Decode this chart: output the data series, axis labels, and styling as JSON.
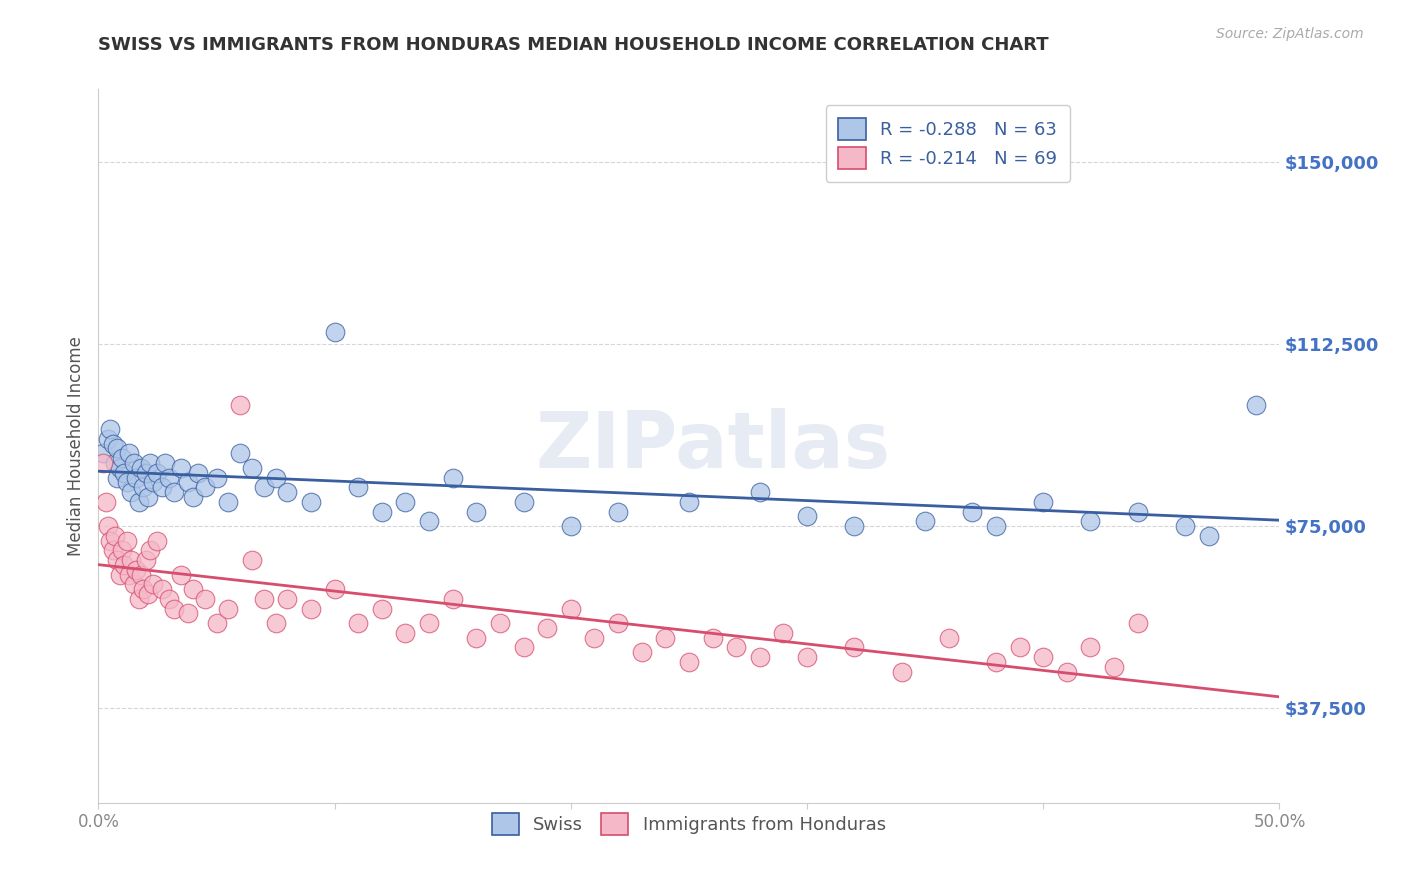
{
  "title": "SWISS VS IMMIGRANTS FROM HONDURAS MEDIAN HOUSEHOLD INCOME CORRELATION CHART",
  "source": "Source: ZipAtlas.com",
  "ylabel": "Median Household Income",
  "xlim": [
    0.0,
    0.5
  ],
  "ylim": [
    18000,
    165000
  ],
  "yticks": [
    37500,
    75000,
    112500,
    150000
  ],
  "ytick_labels": [
    "$37,500",
    "$75,000",
    "$112,500",
    "$150,000"
  ],
  "xticks": [
    0.0,
    0.1,
    0.2,
    0.3,
    0.4,
    0.5
  ],
  "xtick_labels": [
    "0.0%",
    "",
    "",
    "",
    "",
    "50.0%"
  ],
  "legend_labels": [
    "Swiss",
    "Immigrants from Honduras"
  ],
  "swiss_color": "#aec6e8",
  "swiss_line_color": "#3a5fa0",
  "honduras_color": "#f5b8c8",
  "honduras_line_color": "#d64d6e",
  "swiss_R": -0.288,
  "swiss_N": 63,
  "honduras_R": -0.214,
  "honduras_N": 69,
  "watermark": "ZIPatlas",
  "background_color": "#ffffff",
  "grid_color": "#cccccc",
  "title_color": "#333333",
  "axis_label_color": "#555555",
  "ytick_color": "#4472c4",
  "xtick_color": "#888888",
  "swiss_x": [
    0.002,
    0.004,
    0.005,
    0.006,
    0.007,
    0.008,
    0.008,
    0.009,
    0.01,
    0.011,
    0.012,
    0.013,
    0.014,
    0.015,
    0.016,
    0.017,
    0.018,
    0.019,
    0.02,
    0.021,
    0.022,
    0.023,
    0.025,
    0.027,
    0.028,
    0.03,
    0.032,
    0.035,
    0.038,
    0.04,
    0.042,
    0.045,
    0.05,
    0.055,
    0.06,
    0.065,
    0.07,
    0.075,
    0.08,
    0.09,
    0.1,
    0.11,
    0.12,
    0.13,
    0.14,
    0.15,
    0.16,
    0.18,
    0.2,
    0.22,
    0.25,
    0.28,
    0.3,
    0.32,
    0.35,
    0.37,
    0.38,
    0.4,
    0.42,
    0.44,
    0.46,
    0.47,
    0.49
  ],
  "swiss_y": [
    90000,
    93000,
    95000,
    92000,
    88000,
    85000,
    91000,
    87000,
    89000,
    86000,
    84000,
    90000,
    82000,
    88000,
    85000,
    80000,
    87000,
    83000,
    86000,
    81000,
    88000,
    84000,
    86000,
    83000,
    88000,
    85000,
    82000,
    87000,
    84000,
    81000,
    86000,
    83000,
    85000,
    80000,
    90000,
    87000,
    83000,
    85000,
    82000,
    80000,
    115000,
    83000,
    78000,
    80000,
    76000,
    85000,
    78000,
    80000,
    75000,
    78000,
    80000,
    82000,
    77000,
    75000,
    76000,
    78000,
    75000,
    80000,
    76000,
    78000,
    75000,
    73000,
    100000
  ],
  "honduras_x": [
    0.002,
    0.003,
    0.004,
    0.005,
    0.006,
    0.007,
    0.008,
    0.009,
    0.01,
    0.011,
    0.012,
    0.013,
    0.014,
    0.015,
    0.016,
    0.017,
    0.018,
    0.019,
    0.02,
    0.021,
    0.022,
    0.023,
    0.025,
    0.027,
    0.03,
    0.032,
    0.035,
    0.038,
    0.04,
    0.045,
    0.05,
    0.055,
    0.06,
    0.065,
    0.07,
    0.075,
    0.08,
    0.09,
    0.1,
    0.11,
    0.12,
    0.13,
    0.14,
    0.15,
    0.16,
    0.17,
    0.18,
    0.19,
    0.2,
    0.21,
    0.22,
    0.23,
    0.24,
    0.25,
    0.26,
    0.27,
    0.28,
    0.29,
    0.3,
    0.32,
    0.34,
    0.36,
    0.38,
    0.39,
    0.4,
    0.41,
    0.42,
    0.43,
    0.44
  ],
  "honduras_y": [
    88000,
    80000,
    75000,
    72000,
    70000,
    73000,
    68000,
    65000,
    70000,
    67000,
    72000,
    65000,
    68000,
    63000,
    66000,
    60000,
    65000,
    62000,
    68000,
    61000,
    70000,
    63000,
    72000,
    62000,
    60000,
    58000,
    65000,
    57000,
    62000,
    60000,
    55000,
    58000,
    100000,
    68000,
    60000,
    55000,
    60000,
    58000,
    62000,
    55000,
    58000,
    53000,
    55000,
    60000,
    52000,
    55000,
    50000,
    54000,
    58000,
    52000,
    55000,
    49000,
    52000,
    47000,
    52000,
    50000,
    48000,
    53000,
    48000,
    50000,
    45000,
    52000,
    47000,
    50000,
    48000,
    45000,
    50000,
    46000,
    55000
  ]
}
